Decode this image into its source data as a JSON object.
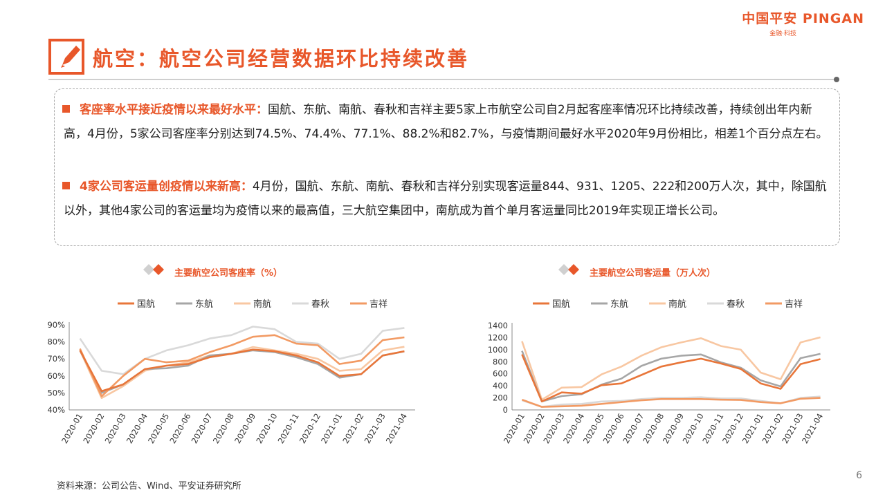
{
  "header": {
    "brand": "中国平安 PINGAN",
    "brand_sub": "金融·科技",
    "title": "航空：航空公司经营数据环比持续改善"
  },
  "bullets": [
    {
      "highlight": "客座率水平接近疫情以来最好水平：",
      "text": "国航、东航、南航、春秋和吉祥主要5家上市航空公司自2月起客座率情况环比持续改善，持续创出年内新高，4月份，5家公司客座率分别达到74.5%、74.4%、77.1%、88.2%和82.7%，与疫情期间最好水平2020年9月份相比，相差1个百分点左右。"
    },
    {
      "highlight": "4家公司客运量创疫情以来新高：",
      "text": "4月份，国航、东航、南航、春秋和吉祥分别实现客运量844、931、1205、222和200万人次，其中，除国航以外，其他4家公司的客运量均为疫情以来的最高值，三大航空集团中，南航成为首个单月客运量同比2019年实现正增长公司。"
    }
  ],
  "colors": {
    "accent": "#e8572a",
    "国航": "#e8763a",
    "东航": "#a6a6a6",
    "南航": "#f8c7a2",
    "春秋": "#d9d9d9",
    "吉祥": "#f29a63"
  },
  "chart_data": [
    {
      "type": "line",
      "title": "主要航空公司客座率（%）",
      "categories": [
        "2020-01",
        "2020-02",
        "2020-03",
        "2020-04",
        "2020-05",
        "2020-06",
        "2020-07",
        "2020-08",
        "2020-09",
        "2020-10",
        "2020-11",
        "2020-12",
        "2021-01",
        "2021-02",
        "2021-03",
        "2021-04"
      ],
      "ylim": [
        40,
        90
      ],
      "yticks": [
        "40%",
        "50%",
        "60%",
        "70%",
        "80%",
        "90%"
      ],
      "series": [
        {
          "name": "国航",
          "values": [
            75,
            51,
            55,
            64,
            66,
            67,
            71,
            73,
            75.5,
            74.5,
            72,
            68,
            60,
            61,
            72,
            74.5
          ]
        },
        {
          "name": "东航",
          "values": [
            75,
            50,
            55,
            64,
            64.5,
            66,
            72,
            73,
            75,
            74,
            71,
            67,
            59,
            61,
            72,
            74.4
          ]
        },
        {
          "name": "南航",
          "values": [
            75,
            47,
            54,
            63,
            66,
            68,
            72,
            73,
            77,
            75,
            73,
            70,
            63,
            64,
            75,
            77.1
          ]
        },
        {
          "name": "春秋",
          "values": [
            82,
            63,
            61,
            70,
            75,
            78,
            82,
            84,
            89,
            87.5,
            80,
            79,
            70,
            73,
            86.5,
            88.2
          ]
        },
        {
          "name": "吉祥",
          "values": [
            76,
            48,
            60,
            70,
            68,
            69,
            74,
            78,
            83,
            84,
            79,
            78,
            67,
            69,
            81,
            82.7
          ]
        }
      ]
    },
    {
      "type": "line",
      "title": "主要航空公司客运量（万人次）",
      "categories": [
        "2020-01",
        "2020-02",
        "2020-03",
        "2020-04",
        "2020-05",
        "2020-06",
        "2020-07",
        "2020-08",
        "2020-09",
        "2020-10",
        "2020-11",
        "2020-12",
        "2021-01",
        "2021-02",
        "2021-03",
        "2021-04"
      ],
      "ylim": [
        0,
        1400
      ],
      "yticks": [
        "0",
        "200",
        "400",
        "600",
        "800",
        "1000",
        "1200",
        "1400"
      ],
      "series": [
        {
          "name": "国航",
          "values": [
            920,
            140,
            290,
            270,
            410,
            440,
            580,
            720,
            790,
            850,
            770,
            680,
            440,
            350,
            760,
            844
          ]
        },
        {
          "name": "东航",
          "values": [
            980,
            140,
            230,
            260,
            420,
            520,
            730,
            850,
            900,
            920,
            790,
            700,
            490,
            390,
            860,
            931
          ]
        },
        {
          "name": "南航",
          "values": [
            1140,
            170,
            370,
            380,
            590,
            720,
            900,
            1040,
            1120,
            1190,
            1060,
            1000,
            620,
            510,
            1120,
            1205
          ]
        },
        {
          "name": "春秋",
          "values": [
            160,
            50,
            90,
            100,
            140,
            150,
            180,
            200,
            200,
            210,
            190,
            190,
            150,
            110,
            200,
            222
          ]
        },
        {
          "name": "吉祥",
          "values": [
            170,
            50,
            60,
            70,
            100,
            130,
            160,
            180,
            180,
            180,
            170,
            165,
            130,
            110,
            185,
            200
          ]
        }
      ]
    }
  ],
  "footer": {
    "source": "资料来源：公司公告、Wind、平安证券研究所",
    "page": "6"
  }
}
